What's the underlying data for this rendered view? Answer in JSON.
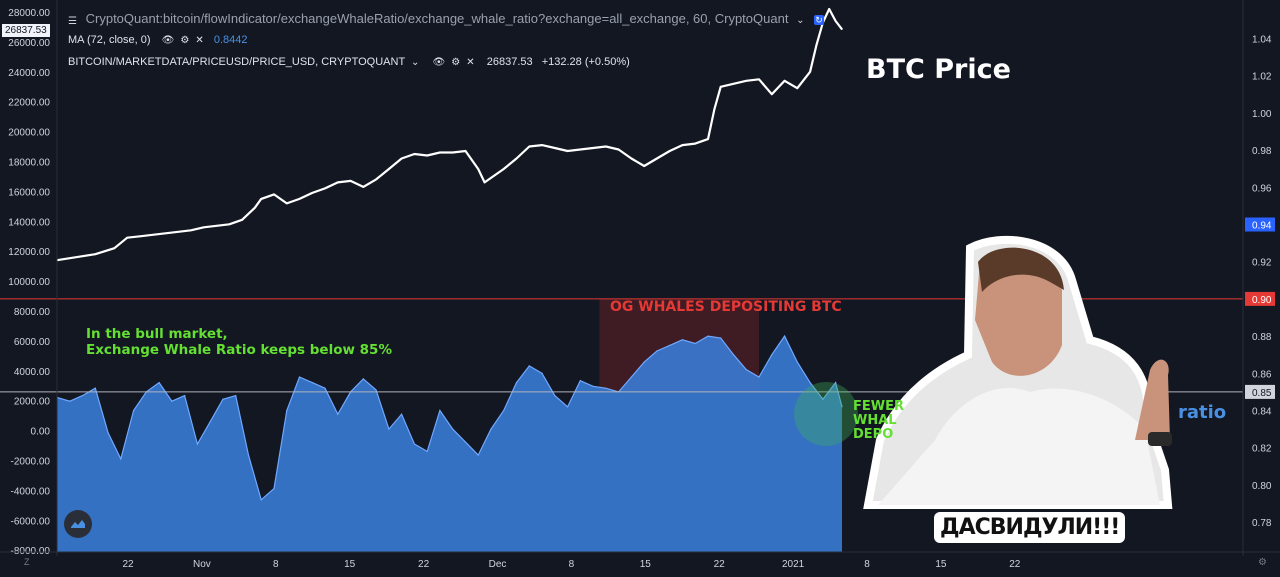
{
  "window": {
    "title": "CryptoQuant:bitcoin/flowIndicator/exchangeWhaleRatio/exchange_whale_ratio?exchange=all_exchange, 60, CryptoQuant",
    "price_badge": "26837.53"
  },
  "indicators": [
    {
      "label": "MA (72, close, 0)",
      "value": "0.8442",
      "value_color": "#4a90e2"
    },
    {
      "label": "BITCOIN/MARKETDATA/PRICEUSD/PRICE_USD, CRYPTOQUANT",
      "value": "26837.53",
      "change": "+132.28 (+0.50%)"
    }
  ],
  "annotations": {
    "btc_price": "BTC Price",
    "og_whales": "OG WHALES DEPOSITING BTC",
    "bull_line1": "In the bull market,",
    "bull_line2": "Exchange Whale Ratio keeps below 85%",
    "fewer_1": "FEWER",
    "fewer_2": "WHAL",
    "fewer_3": "DEPO",
    "ratio_partial": "ratio",
    "caption": "ДАСВИДУЛИ!!!"
  },
  "chart_data": {
    "type": "line",
    "x_tick_labels": [
      "22",
      "Nov",
      "8",
      "15",
      "22",
      "Dec",
      "8",
      "15",
      "22",
      "2021",
      "8",
      "15",
      "22"
    ],
    "left_axis": {
      "ticks": [
        "28000.00",
        "26000.00",
        "24000.00",
        "22000.00",
        "20000.00",
        "18000.00",
        "16000.00",
        "14000.00",
        "12000.00",
        "10000.00",
        "8000.00",
        "6000.00",
        "4000.00",
        "2000.00",
        "0.00",
        "-2000.00",
        "-4000.00",
        "-6000.00",
        "-8000.00"
      ],
      "range": [
        -8000,
        28000
      ]
    },
    "right_axis": {
      "ticks": [
        "1.04",
        "1.02",
        "1.00",
        "0.98",
        "0.96",
        "0.94",
        "0.92",
        "0.90",
        "0.88",
        "0.86",
        "0.85",
        "0.84",
        "0.82",
        "0.80",
        "0.78"
      ],
      "range": [
        0.77,
        1.05
      ],
      "badges": [
        {
          "label": "0.94",
          "color": "#2962ff"
        },
        {
          "label": "0.90",
          "color": "#e53935"
        },
        {
          "label": "0.85",
          "color": "#d1d4dc"
        }
      ]
    },
    "horizontal_lines": [
      {
        "value": 0.9,
        "color": "#e53935"
      },
      {
        "value": 0.85,
        "color": "#b0b3bd"
      }
    ],
    "series": [
      {
        "name": "BITCOIN/MARKETDATA/PRICEUSD/PRICE_USD, CRYPTOQUANT",
        "axis": "left",
        "color": "#ffffff",
        "points": [
          [
            0,
            11400
          ],
          [
            3,
            11600
          ],
          [
            6,
            11800
          ],
          [
            9,
            12200
          ],
          [
            11,
            12900
          ],
          [
            13,
            13000
          ],
          [
            15,
            13100
          ],
          [
            17,
            13200
          ],
          [
            19,
            13300
          ],
          [
            21,
            13400
          ],
          [
            23,
            13600
          ],
          [
            25,
            13700
          ],
          [
            27,
            13800
          ],
          [
            29,
            14100
          ],
          [
            31,
            14900
          ],
          [
            32,
            15500
          ],
          [
            34,
            15800
          ],
          [
            36,
            15200
          ],
          [
            38,
            15500
          ],
          [
            40,
            15900
          ],
          [
            42,
            16200
          ],
          [
            44,
            16600
          ],
          [
            46,
            16700
          ],
          [
            48,
            16300
          ],
          [
            50,
            16800
          ],
          [
            52,
            17500
          ],
          [
            54,
            18200
          ],
          [
            56,
            18500
          ],
          [
            58,
            18400
          ],
          [
            60,
            18600
          ],
          [
            62,
            18600
          ],
          [
            64,
            18700
          ],
          [
            66,
            17500
          ],
          [
            67,
            16600
          ],
          [
            68,
            16900
          ],
          [
            70,
            17500
          ],
          [
            72,
            18200
          ],
          [
            74,
            19000
          ],
          [
            76,
            19100
          ],
          [
            78,
            18900
          ],
          [
            80,
            18700
          ],
          [
            82,
            18800
          ],
          [
            84,
            18900
          ],
          [
            86,
            19000
          ],
          [
            88,
            18800
          ],
          [
            90,
            18200
          ],
          [
            92,
            17700
          ],
          [
            94,
            18200
          ],
          [
            96,
            18700
          ],
          [
            98,
            19100
          ],
          [
            100,
            19200
          ],
          [
            102,
            19500
          ],
          [
            103,
            21500
          ],
          [
            104,
            23000
          ],
          [
            106,
            23200
          ],
          [
            108,
            23400
          ],
          [
            110,
            23500
          ],
          [
            112,
            22500
          ],
          [
            114,
            23400
          ],
          [
            116,
            22900
          ],
          [
            118,
            24000
          ],
          [
            119,
            25800
          ],
          [
            120,
            27300
          ],
          [
            121,
            28200
          ],
          [
            122,
            27400
          ],
          [
            123,
            26840
          ]
        ]
      },
      {
        "name": "MA (72, close, 0)",
        "axis": "right",
        "color": "#4a90e2",
        "fill": true,
        "points": [
          [
            0,
            0.847
          ],
          [
            2,
            0.845
          ],
          [
            4,
            0.848
          ],
          [
            6,
            0.852
          ],
          [
            8,
            0.828
          ],
          [
            10,
            0.814
          ],
          [
            12,
            0.84
          ],
          [
            14,
            0.85
          ],
          [
            16,
            0.855
          ],
          [
            18,
            0.845
          ],
          [
            20,
            0.848
          ],
          [
            22,
            0.822
          ],
          [
            24,
            0.834
          ],
          [
            26,
            0.846
          ],
          [
            28,
            0.848
          ],
          [
            30,
            0.816
          ],
          [
            32,
            0.792
          ],
          [
            34,
            0.798
          ],
          [
            36,
            0.84
          ],
          [
            38,
            0.858
          ],
          [
            40,
            0.855
          ],
          [
            42,
            0.852
          ],
          [
            44,
            0.838
          ],
          [
            46,
            0.85
          ],
          [
            48,
            0.857
          ],
          [
            50,
            0.851
          ],
          [
            52,
            0.83
          ],
          [
            54,
            0.838
          ],
          [
            56,
            0.822
          ],
          [
            58,
            0.818
          ],
          [
            60,
            0.84
          ],
          [
            62,
            0.83
          ],
          [
            64,
            0.823
          ],
          [
            66,
            0.816
          ],
          [
            68,
            0.83
          ],
          [
            70,
            0.84
          ],
          [
            72,
            0.855
          ],
          [
            74,
            0.864
          ],
          [
            76,
            0.86
          ],
          [
            78,
            0.848
          ],
          [
            80,
            0.842
          ],
          [
            82,
            0.856
          ],
          [
            84,
            0.853
          ],
          [
            86,
            0.852
          ],
          [
            88,
            0.85
          ],
          [
            90,
            0.858
          ],
          [
            92,
            0.866
          ],
          [
            94,
            0.872
          ],
          [
            96,
            0.875
          ],
          [
            98,
            0.878
          ],
          [
            100,
            0.876
          ],
          [
            102,
            0.88
          ],
          [
            104,
            0.879
          ],
          [
            106,
            0.87
          ],
          [
            108,
            0.862
          ],
          [
            110,
            0.858
          ],
          [
            112,
            0.87
          ],
          [
            114,
            0.88
          ],
          [
            116,
            0.866
          ],
          [
            118,
            0.855
          ],
          [
            120,
            0.846
          ],
          [
            122,
            0.855
          ],
          [
            123,
            0.842
          ]
        ]
      }
    ],
    "highlight_band": {
      "x": [
        85,
        110
      ],
      "color": "rgba(180,40,40,0.28)"
    },
    "grid": false,
    "legend": "top-left"
  }
}
